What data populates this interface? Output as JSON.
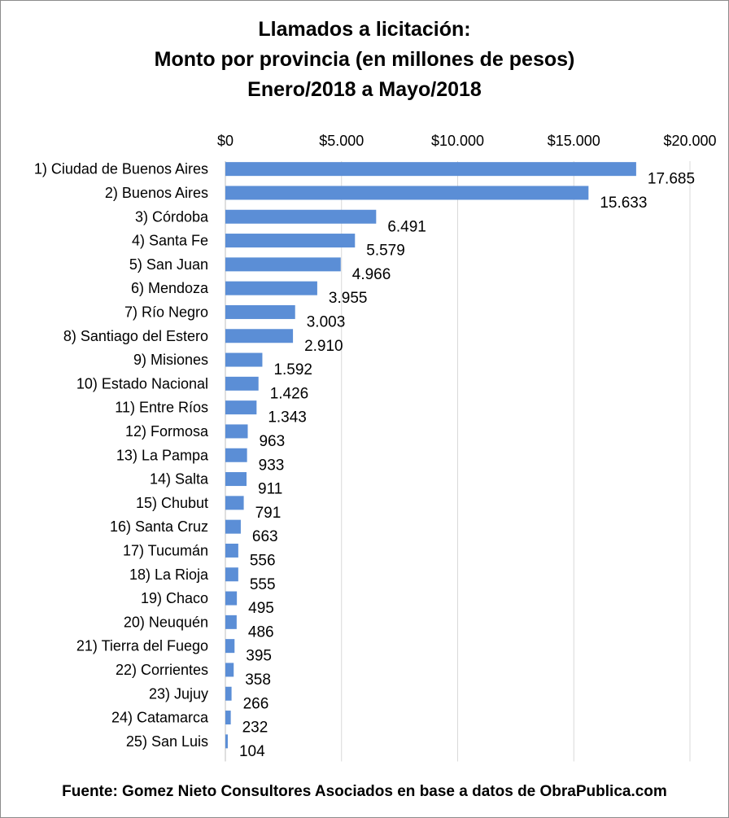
{
  "chart_data": {
    "type": "bar",
    "orientation": "horizontal",
    "title_lines": [
      "Llamados a licitación:",
      "Monto por provincia (en millones de pesos)",
      "Enero/2018 a Mayo/2018"
    ],
    "categories": [
      "1) Ciudad de Buenos Aires",
      "2) Buenos Aires",
      "3) Córdoba",
      "4) Santa Fe",
      "5) San Juan",
      "6) Mendoza",
      "7) Río Negro",
      "8) Santiago del Estero",
      "9) Misiones",
      "10) Estado Nacional",
      "11) Entre Ríos",
      "12) Formosa",
      "13) La Pampa",
      "14) Salta",
      "15) Chubut",
      "16) Santa Cruz",
      "17) Tucumán",
      "18) La Rioja",
      "19) Chaco",
      "20) Neuquén",
      "21) Tierra del Fuego",
      "22) Corrientes",
      "23) Jujuy",
      "24) Catamarca",
      "25) San Luis"
    ],
    "values": [
      17685,
      15633,
      6491,
      5579,
      4966,
      3955,
      3003,
      2910,
      1592,
      1426,
      1343,
      963,
      933,
      911,
      791,
      663,
      556,
      555,
      495,
      486,
      395,
      358,
      266,
      232,
      104
    ],
    "value_labels": [
      "17.685",
      "15.633",
      "6.491",
      "5.579",
      "4.966",
      "3.955",
      "3.003",
      "2.910",
      "1.592",
      "1.426",
      "1.343",
      "963",
      "933",
      "911",
      "791",
      "663",
      "556",
      "555",
      "495",
      "486",
      "395",
      "358",
      "266",
      "232",
      "104"
    ],
    "x_ticks": [
      0,
      5000,
      10000,
      15000,
      20000
    ],
    "x_tick_labels": [
      "$0",
      "$5.000",
      "$10.000",
      "$15.000",
      "$20.000"
    ],
    "xlim": [
      0,
      20000
    ],
    "x_axis_position": "top",
    "grid": true,
    "bar_color": "#5b8ed6",
    "grid_color": "#d9d9d9"
  },
  "source": "Fuente: Gomez Nieto Consultores Asociados en base a datos de ObraPublica.com"
}
